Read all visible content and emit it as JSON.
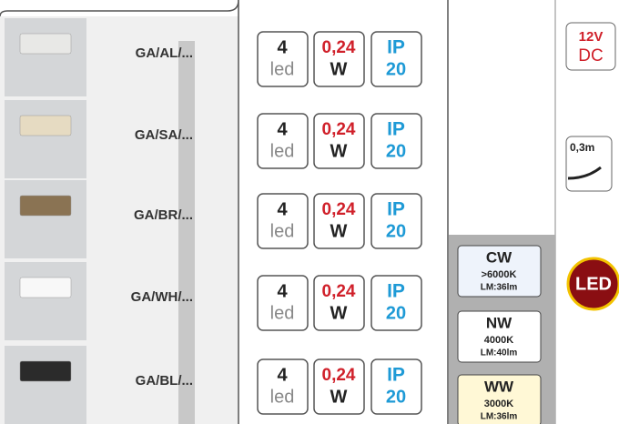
{
  "products": [
    {
      "code": "GA/AL/...",
      "led_count": "4",
      "led_label": "led",
      "power": "0,24",
      "power_unit": "W",
      "ip": "IP",
      "ip_rating": "20"
    },
    {
      "code": "GA/SA/...",
      "led_count": "4",
      "led_label": "led",
      "power": "0,24",
      "power_unit": "W",
      "ip": "IP",
      "ip_rating": "20"
    },
    {
      "code": "GA/BR/...",
      "led_count": "4",
      "led_label": "led",
      "power": "0,24",
      "power_unit": "W",
      "ip": "IP",
      "ip_rating": "20"
    },
    {
      "code": "GA/WH/...",
      "led_count": "4",
      "led_label": "led",
      "power": "0,24",
      "power_unit": "W",
      "ip": "IP",
      "ip_rating": "20"
    },
    {
      "code": "GA/BL/...",
      "led_count": "4",
      "led_label": "led",
      "power": "0,24",
      "power_unit": "W",
      "ip": "IP",
      "ip_rating": "20"
    }
  ],
  "color_temps": [
    {
      "name": "CW",
      "kelvin": ">6000K",
      "lumen": "LM:36lm"
    },
    {
      "name": "NW",
      "kelvin": "4000K",
      "lumen": "LM:40lm"
    },
    {
      "name": "WW",
      "kelvin": "3000K",
      "lumen": "LM:36lm"
    }
  ],
  "icons": {
    "voltage": "12V",
    "current": "DC",
    "cable": "0,3m",
    "led": "LED"
  }
}
